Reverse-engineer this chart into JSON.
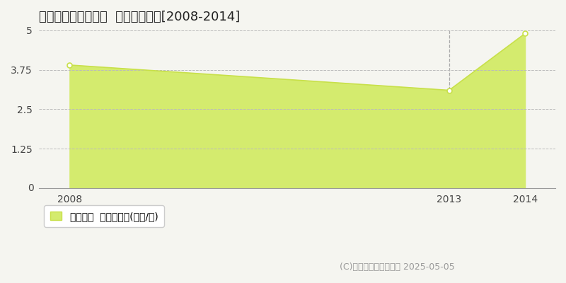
{
  "title": "耶麻郡北塩原村北山  土地価格推移[2008-2014]",
  "years": [
    2008,
    2013,
    2014
  ],
  "values": [
    3.9,
    3.1,
    4.9
  ],
  "line_color": "#c8e04a",
  "fill_color": "#d4eb6e",
  "marker_face": "#ffffff",
  "bg_color": "#f5f5f0",
  "grid_color": "#bbbbbb",
  "vline_color": "#aaaaaa",
  "xlim": [
    2007.6,
    2014.4
  ],
  "ylim": [
    0,
    5.0
  ],
  "yticks": [
    0,
    1.25,
    2.5,
    3.75,
    5
  ],
  "xticks": [
    2008,
    2013,
    2014
  ],
  "legend_label": "土地価格  平均坪単価(万円/坪)",
  "copyright": "(C)土地価格ドットコム 2025-05-05",
  "title_fontsize": 13,
  "tick_fontsize": 10,
  "legend_fontsize": 10,
  "copyright_fontsize": 9
}
